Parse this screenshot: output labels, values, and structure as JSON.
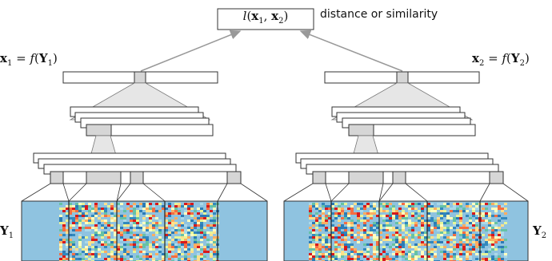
{
  "loss": {
    "fn": "l",
    "x1": "x",
    "x1_sub": "1",
    "x2": "x",
    "x2_sub": "2",
    "caption": "distance or similarity"
  },
  "left": {
    "output_label": {
      "var": "x",
      "sub": "1",
      "f": "f",
      "Y": "Y",
      "Ysub": "1"
    },
    "input_label": {
      "Y": "Y",
      "sub": "1"
    }
  },
  "right": {
    "output_label": {
      "var": "x",
      "sub": "2",
      "f": "f",
      "Y": "Y",
      "Ysub": "2"
    },
    "input_label": {
      "Y": "Y",
      "sub": "2"
    }
  },
  "colors": {
    "input_bg": "#8fc3e0",
    "box_stroke": "#333333",
    "arrow": "#999999",
    "trap_fill": "#e3e3e3",
    "cell_highlight": "#d6d6d6"
  }
}
